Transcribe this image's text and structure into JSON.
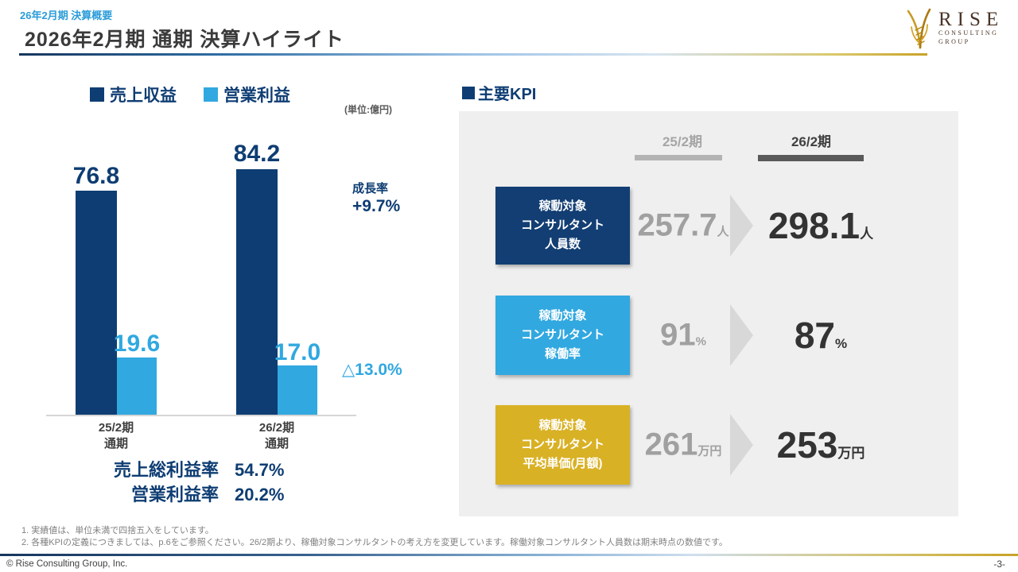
{
  "header": {
    "eyebrow": "26年2月期 決算概要",
    "title": "2026年2月期 通期 決算ハイライト",
    "logo": {
      "name": "RISE",
      "sub1": "CONSULTING",
      "sub2": "GROUP"
    }
  },
  "left_chart": {
    "unit_note": "(単位:億円)",
    "growth": {
      "label": "成長率",
      "value": "+9.7%"
    },
    "decline": "△13.0%",
    "ratios": [
      {
        "label": "売上総利益率",
        "value": "54.7%"
      },
      {
        "label": "営業利益率",
        "value": "20.2%"
      }
    ]
  },
  "chart_data": [
    {
      "type": "bar",
      "title": "売上収益・営業利益",
      "unit": "億円",
      "categories": [
        "25/2期\n通期",
        "26/2期\n通期"
      ],
      "series": [
        {
          "name": "売上収益",
          "color": "#0e3d73",
          "values": [
            76.8,
            84.2
          ],
          "labels": [
            "76.8",
            "84.2"
          ]
        },
        {
          "name": "営業利益",
          "color": "#31a8e0",
          "values": [
            19.6,
            17.0
          ],
          "labels": [
            "19.6",
            "17.0"
          ]
        }
      ],
      "annotations": {
        "revenue_growth": "+9.7%",
        "profit_change": "△13.0%"
      },
      "ylim": [
        0,
        93
      ],
      "legend_position": "top",
      "grid": false
    },
    {
      "type": "table",
      "title": "主要KPI",
      "columns": [
        "25/2期",
        "26/2期"
      ],
      "rows": [
        {
          "label": "稼動対象コンサルタント人員数",
          "values": [
            "257.7人",
            "298.1人"
          ]
        },
        {
          "label": "稼動対象コンサルタント稼働率",
          "values": [
            "91%",
            "87%"
          ]
        },
        {
          "label": "稼動対象コンサルタント平均単価(月額)",
          "values": [
            "261万円",
            "253万円"
          ]
        }
      ]
    }
  ],
  "kpi": {
    "heading": "主要KPI",
    "rows": [
      {
        "label": "稼動対象\nコンサルタント\n人員数",
        "color": "#123e73",
        "prev": "257.7",
        "prev_unit": "人",
        "cur": "298.1",
        "cur_unit": "人"
      },
      {
        "label": "稼動対象\nコンサルタント\n稼働率",
        "color": "#31a8e0",
        "prev": "91",
        "prev_unit": "%",
        "cur": "87",
        "cur_unit": "%"
      },
      {
        "label": "稼動対象\nコンサルタント\n平均単価(月額)",
        "color": "#d9b125",
        "prev": "261",
        "prev_unit": "万円",
        "cur": "253",
        "cur_unit": "万円"
      }
    ]
  },
  "footer": {
    "notes": [
      "1. 実績値は、単位未満で四捨五入をしています。",
      "2. 各種KPIの定義につきましては、p.6をご参照ください。26/2期より、稼働対象コンサルタントの考え方を変更しています。稼働対象コンサルタント人員数は期末時点の数値です。"
    ],
    "copyright": "© Rise Consulting Group, Inc.",
    "page": "-3-"
  }
}
